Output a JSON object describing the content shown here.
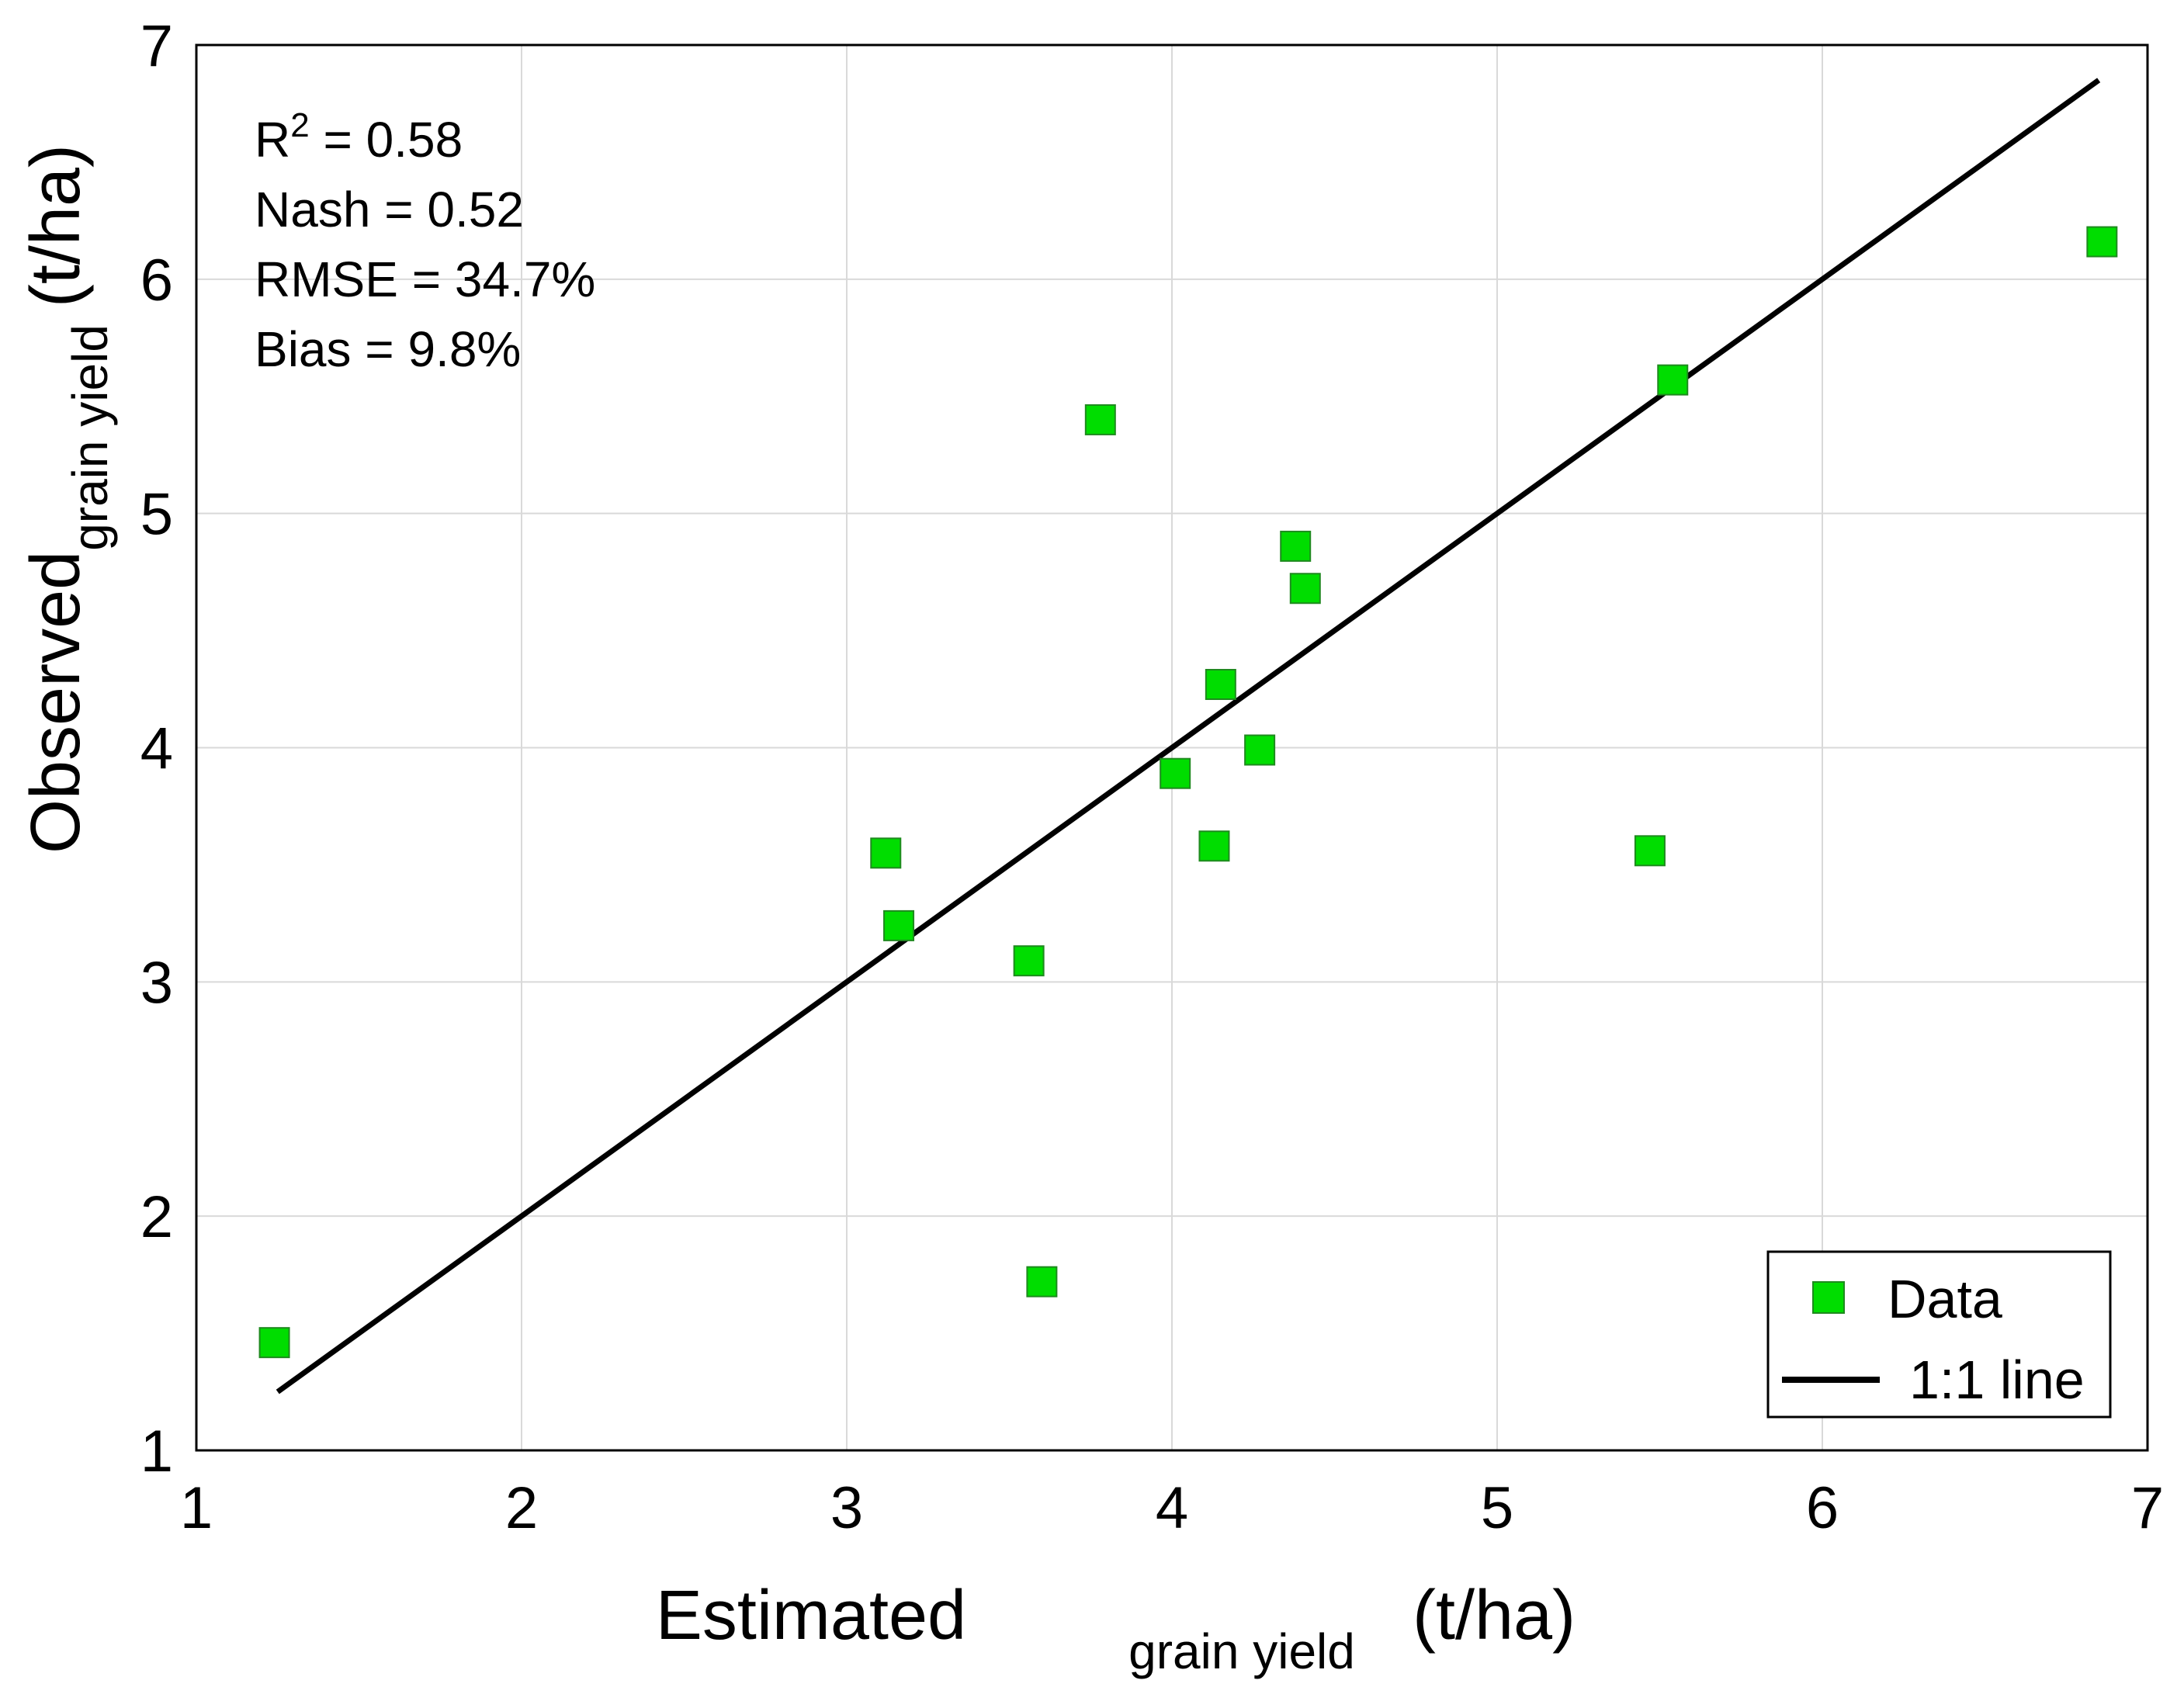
{
  "chart_data": {
    "type": "scatter",
    "title": "",
    "xlabel": {
      "main": "Estimated",
      "sub": "grain yield",
      "unit": "(t/ha)"
    },
    "ylabel": {
      "main": "Observed",
      "sub": "grain yield",
      "unit": "(t/ha)"
    },
    "xlim": [
      1,
      7
    ],
    "ylim": [
      1,
      7
    ],
    "xticks": [
      1,
      2,
      3,
      4,
      5,
      6,
      7
    ],
    "yticks": [
      1,
      2,
      3,
      4,
      5,
      6,
      7
    ],
    "grid": true,
    "series": [
      {
        "name": "Data",
        "kind": "scatter",
        "marker": "square",
        "color": "#00dd00",
        "points": [
          {
            "x": 1.24,
            "y": 1.46
          },
          {
            "x": 3.12,
            "y": 3.55
          },
          {
            "x": 3.16,
            "y": 3.24
          },
          {
            "x": 3.56,
            "y": 3.09
          },
          {
            "x": 3.6,
            "y": 1.72
          },
          {
            "x": 3.78,
            "y": 5.4
          },
          {
            "x": 4.01,
            "y": 3.89
          },
          {
            "x": 4.13,
            "y": 3.58
          },
          {
            "x": 4.15,
            "y": 4.27
          },
          {
            "x": 4.27,
            "y": 3.99
          },
          {
            "x": 4.38,
            "y": 4.86
          },
          {
            "x": 4.41,
            "y": 4.68
          },
          {
            "x": 5.47,
            "y": 3.56
          },
          {
            "x": 5.54,
            "y": 5.57
          },
          {
            "x": 6.86,
            "y": 6.16
          }
        ]
      },
      {
        "name": "1:1 line",
        "kind": "line",
        "color": "#000000",
        "x": [
          1.25,
          6.85
        ],
        "y": [
          1.25,
          6.85
        ]
      }
    ],
    "annotations": {
      "r2_label": "R",
      "r2_sup": "2",
      "r2_value": " = 0.58",
      "nash": "Nash = 0.52",
      "rmse": "RMSE = 34.7%",
      "bias": "Bias = 9.8%"
    },
    "legend": {
      "placement": "bottom-right",
      "entries": [
        "Data",
        "1:1 line"
      ]
    }
  }
}
